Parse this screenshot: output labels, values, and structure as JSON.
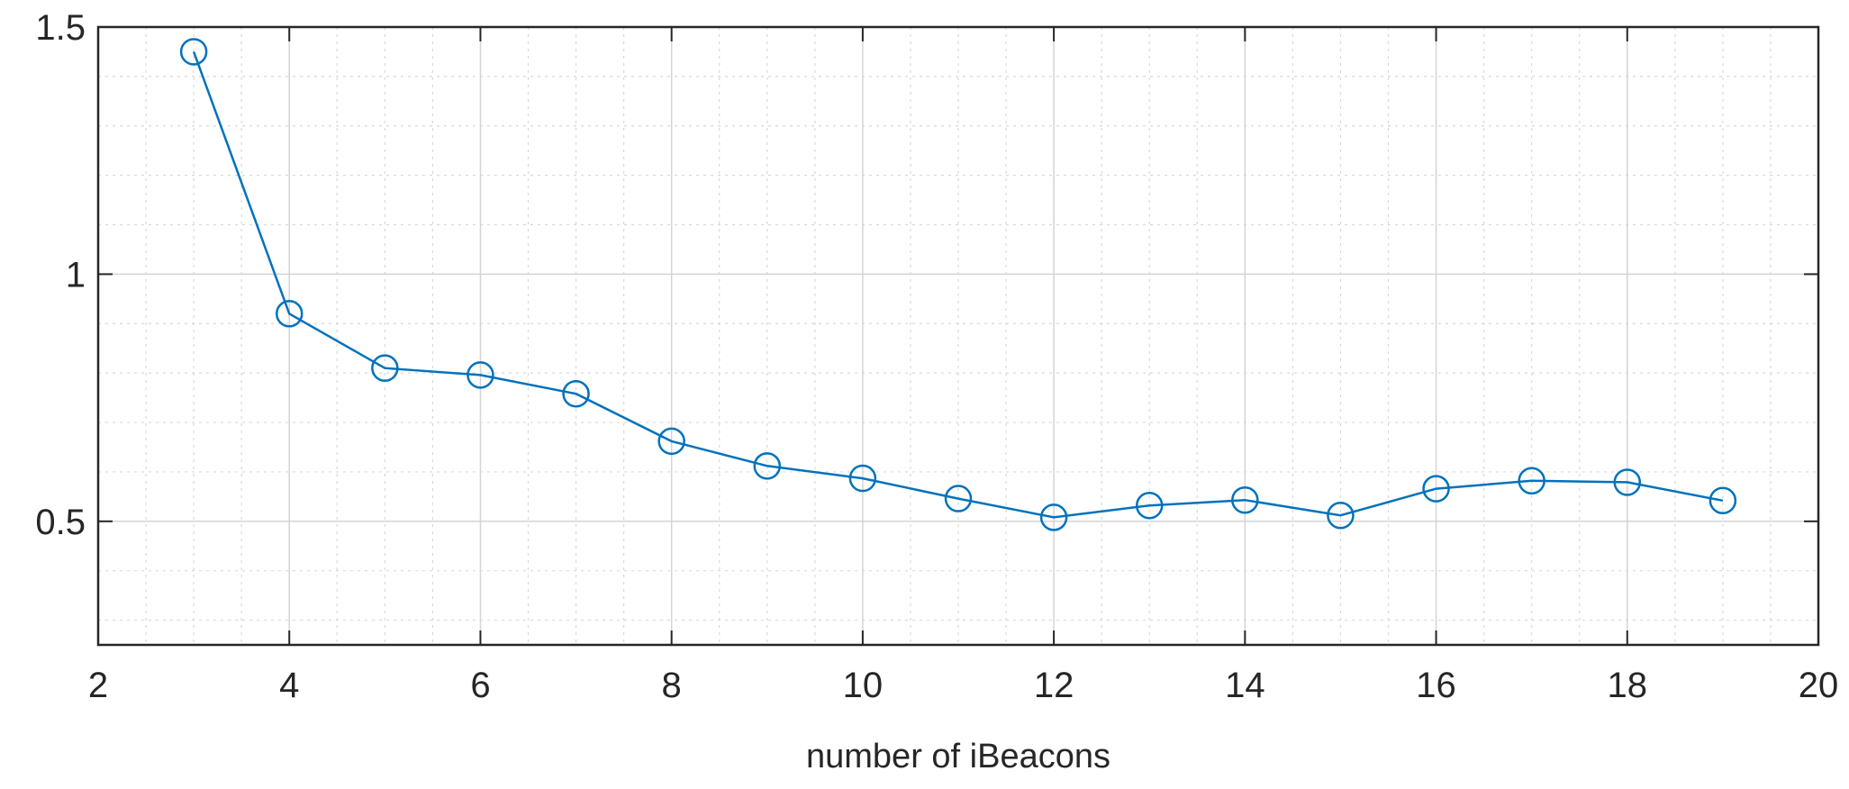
{
  "chart_data": {
    "type": "line",
    "title": "",
    "xlabel": "number of iBeacons",
    "ylabel": "",
    "xlim": [
      2,
      20
    ],
    "ylim": [
      0.25,
      1.5
    ],
    "x_ticks": [
      2,
      4,
      6,
      8,
      10,
      12,
      14,
      16,
      18,
      20
    ],
    "y_ticks": [
      0.5,
      1,
      1.5
    ],
    "x_minor_step": 0.5,
    "y_minor_step": 0.1,
    "grid": true,
    "marker": "circle",
    "series_color": "#0072bd",
    "series": [
      {
        "x": [
          3,
          4,
          5,
          6,
          7,
          8,
          9,
          10,
          11,
          12,
          13,
          14,
          15,
          16,
          17,
          18,
          19
        ],
        "values": [
          1.45,
          0.92,
          0.81,
          0.796,
          0.758,
          0.662,
          0.612,
          0.587,
          0.546,
          0.508,
          0.532,
          0.543,
          0.512,
          0.566,
          0.582,
          0.579,
          0.542
        ]
      }
    ]
  }
}
